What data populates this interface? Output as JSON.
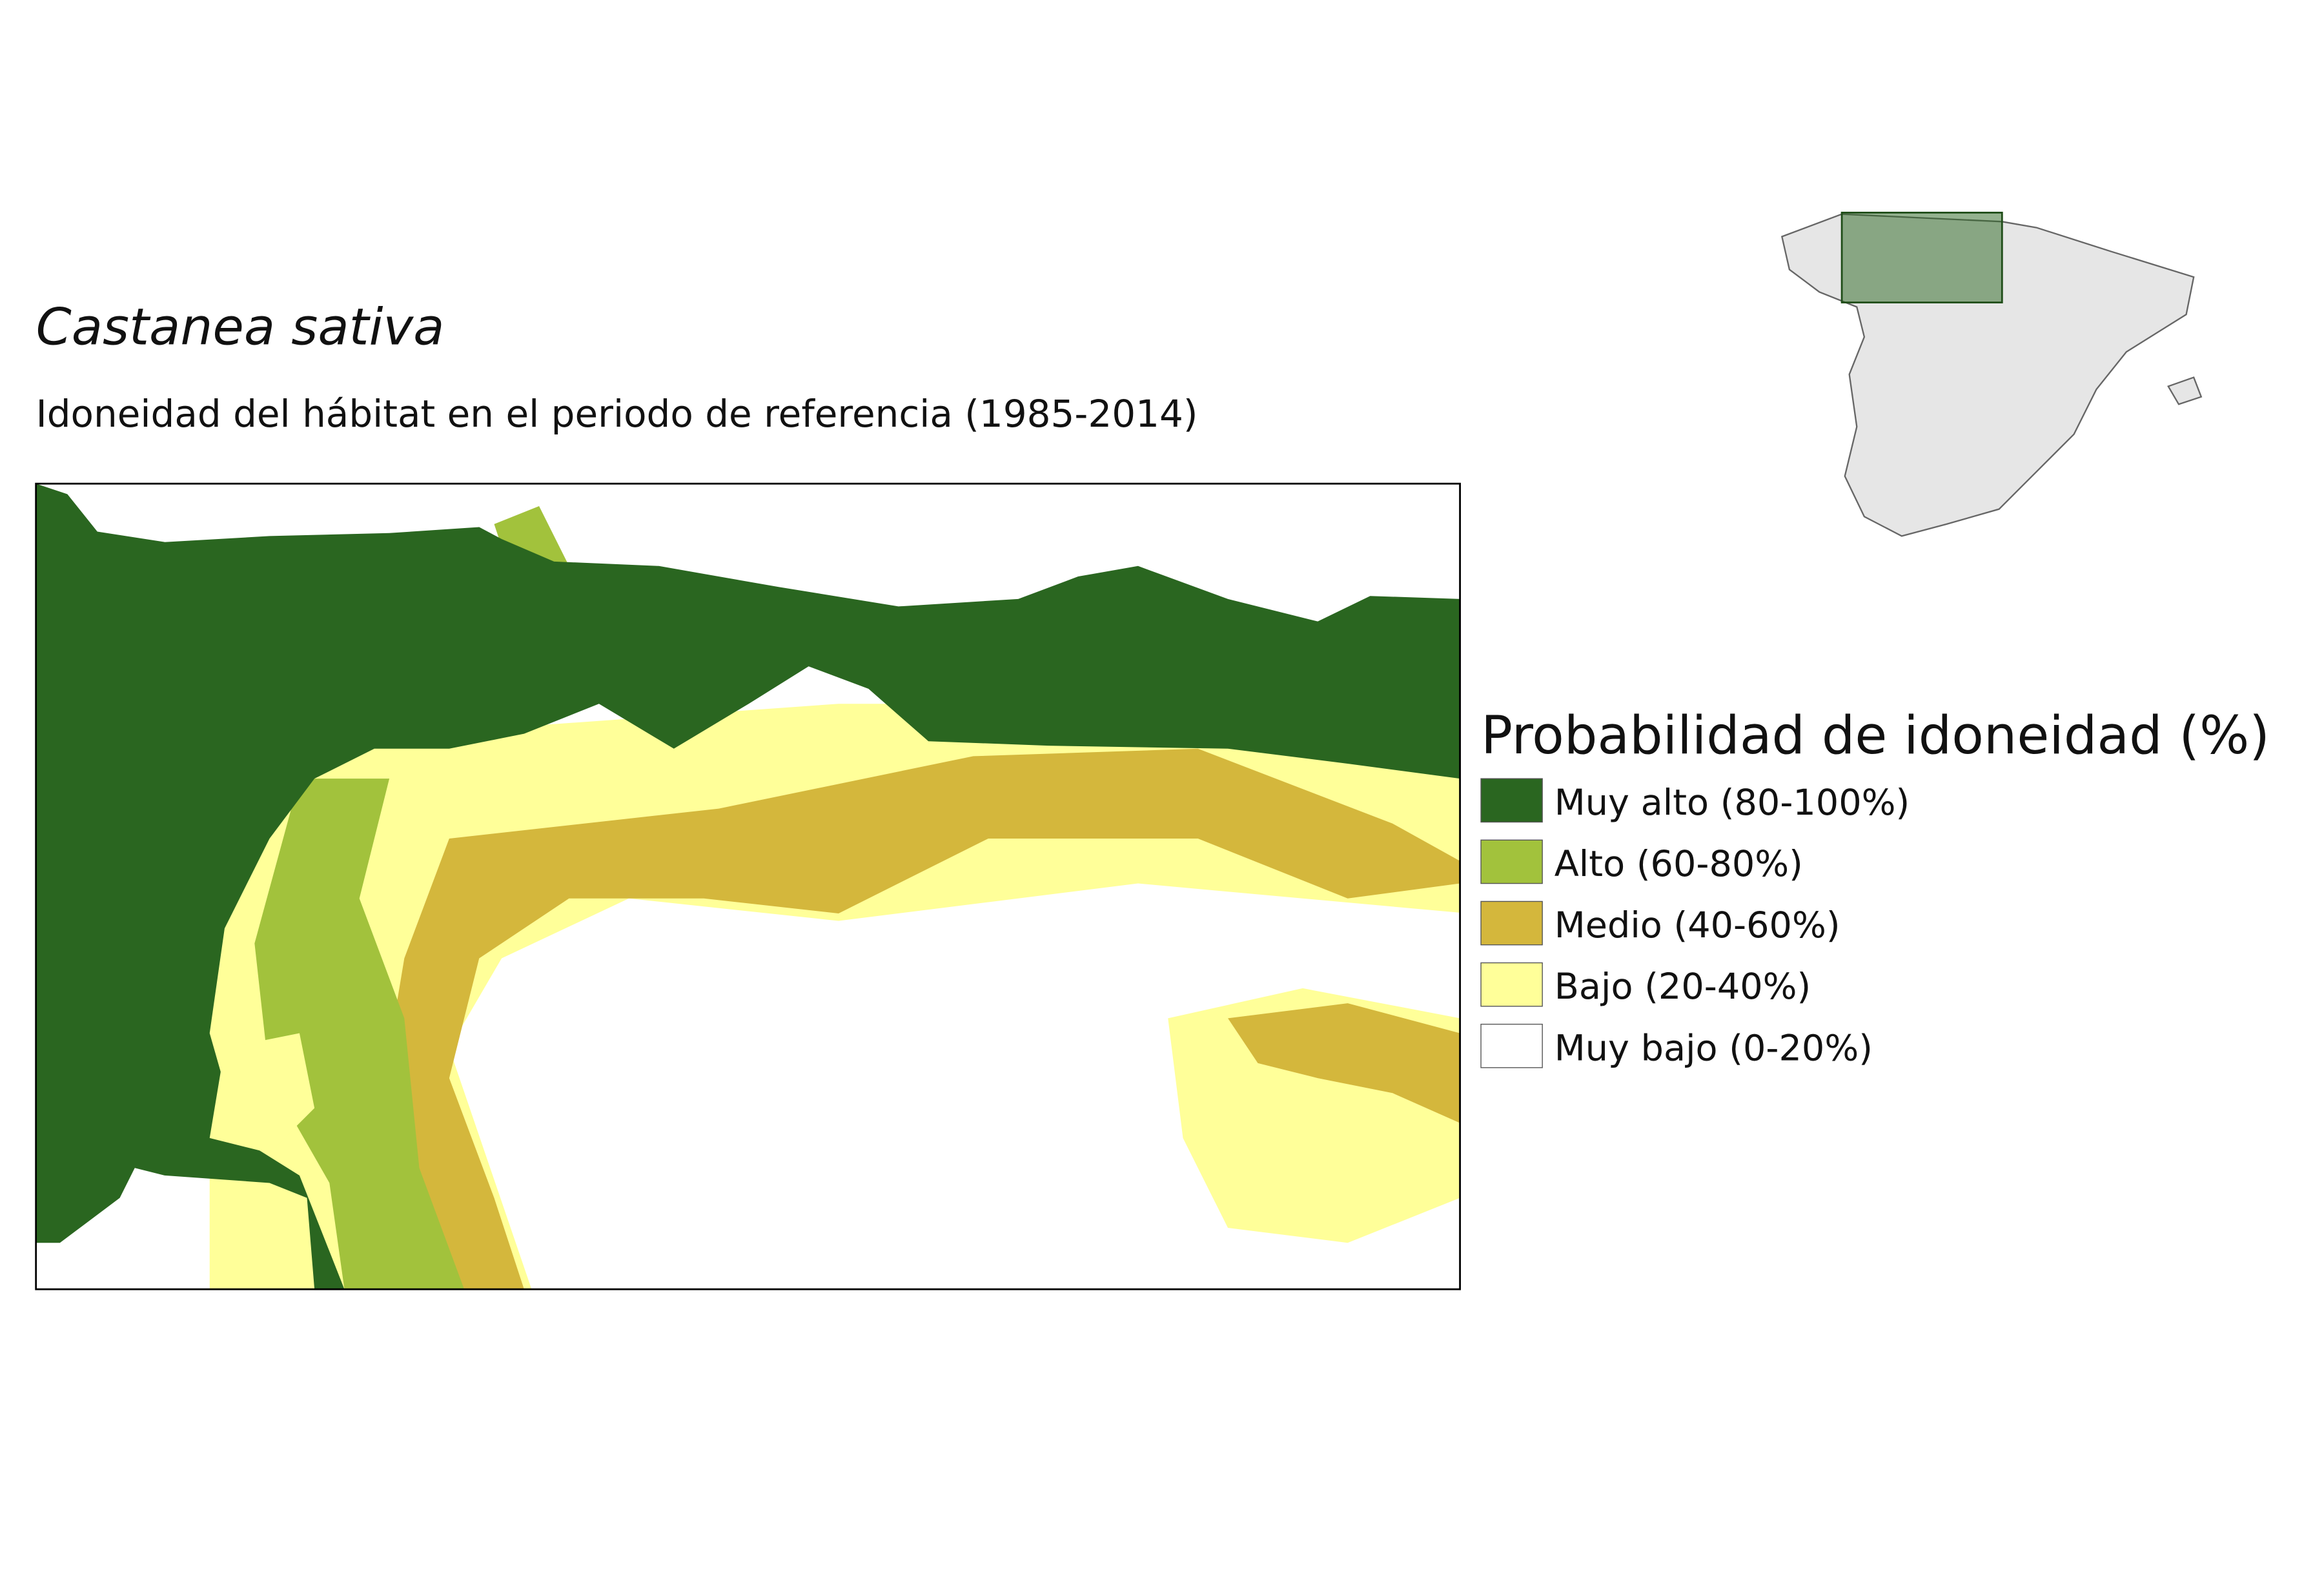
{
  "title": "Castanea sativa",
  "subtitle": "Idoneidad del hábitat en el periodo de referencia (1985-2014)",
  "legend": {
    "title": "Probabilidad de idoneidad (%)",
    "items": [
      {
        "label": "Muy alto (80-100%)",
        "color": "#2a6620"
      },
      {
        "label": "Alto (60-80%)",
        "color": "#a2c23c"
      },
      {
        "label": "Medio (40-60%)",
        "color": "#d4b73c"
      },
      {
        "label": "Bajo (20-40%)",
        "color": "#ffff99"
      },
      {
        "label": "Muy bajo (0-20%)",
        "color": "#ffffff"
      }
    ]
  }
}
